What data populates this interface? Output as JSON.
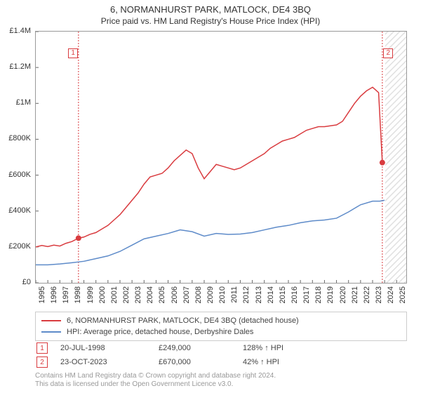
{
  "title": "6, NORMANHURST PARK, MATLOCK, DE4 3BQ",
  "subtitle": "Price paid vs. HM Land Registry's House Price Index (HPI)",
  "chart": {
    "type": "line",
    "background_color": "#ffffff",
    "border_color": "#999999",
    "x": {
      "min": 1995,
      "max": 2025.8,
      "ticks": [
        1995,
        1996,
        1997,
        1998,
        1999,
        2000,
        2001,
        2002,
        2003,
        2004,
        2005,
        2006,
        2007,
        2008,
        2009,
        2010,
        2011,
        2012,
        2013,
        2014,
        2015,
        2016,
        2017,
        2018,
        2019,
        2020,
        2021,
        2022,
        2023,
        2024,
        2025
      ],
      "tick_labels": [
        "1995",
        "1996",
        "1997",
        "1998",
        "1999",
        "2000",
        "2001",
        "2002",
        "2003",
        "2004",
        "2005",
        "2006",
        "2007",
        "2008",
        "2009",
        "2010",
        "2011",
        "2012",
        "2013",
        "2014",
        "2015",
        "2016",
        "2017",
        "2018",
        "2019",
        "2020",
        "2021",
        "2022",
        "2023",
        "2024",
        "2025"
      ],
      "tick_color": "#666666",
      "label_fontsize": 11,
      "label_rotation": -90
    },
    "y": {
      "min": 0,
      "max": 1400000,
      "ticks": [
        0,
        200000,
        400000,
        600000,
        800000,
        1000000,
        1200000,
        1400000
      ],
      "tick_labels": [
        "£0",
        "£200K",
        "£400K",
        "£600K",
        "£800K",
        "£1M",
        "£1.2M",
        "£1.4M"
      ],
      "tick_color": "#666666",
      "label_fontsize": 11
    },
    "series": [
      {
        "name": "price_line",
        "label": "6, NORMANHURST PARK, MATLOCK, DE4 3BQ (detached house)",
        "color": "#d93b3f",
        "line_width": 1.5,
        "data": [
          [
            1995.0,
            200000
          ],
          [
            1995.5,
            208000
          ],
          [
            1996.0,
            202000
          ],
          [
            1996.5,
            210000
          ],
          [
            1997.0,
            205000
          ],
          [
            1997.5,
            220000
          ],
          [
            1998.0,
            230000
          ],
          [
            1998.55,
            249000
          ],
          [
            1999.0,
            255000
          ],
          [
            1999.5,
            270000
          ],
          [
            2000.0,
            280000
          ],
          [
            2000.5,
            300000
          ],
          [
            2001.0,
            320000
          ],
          [
            2001.5,
            350000
          ],
          [
            2002.0,
            380000
          ],
          [
            2002.5,
            420000
          ],
          [
            2003.0,
            460000
          ],
          [
            2003.5,
            500000
          ],
          [
            2004.0,
            550000
          ],
          [
            2004.5,
            590000
          ],
          [
            2005.0,
            600000
          ],
          [
            2005.5,
            610000
          ],
          [
            2006.0,
            640000
          ],
          [
            2006.5,
            680000
          ],
          [
            2007.0,
            710000
          ],
          [
            2007.5,
            740000
          ],
          [
            2008.0,
            720000
          ],
          [
            2008.5,
            640000
          ],
          [
            2009.0,
            580000
          ],
          [
            2009.5,
            620000
          ],
          [
            2010.0,
            660000
          ],
          [
            2010.5,
            650000
          ],
          [
            2011.0,
            640000
          ],
          [
            2011.5,
            630000
          ],
          [
            2012.0,
            640000
          ],
          [
            2012.5,
            660000
          ],
          [
            2013.0,
            680000
          ],
          [
            2013.5,
            700000
          ],
          [
            2014.0,
            720000
          ],
          [
            2014.5,
            750000
          ],
          [
            2015.0,
            770000
          ],
          [
            2015.5,
            790000
          ],
          [
            2016.0,
            800000
          ],
          [
            2016.5,
            810000
          ],
          [
            2017.0,
            830000
          ],
          [
            2017.5,
            850000
          ],
          [
            2018.0,
            860000
          ],
          [
            2018.5,
            870000
          ],
          [
            2019.0,
            870000
          ],
          [
            2019.5,
            875000
          ],
          [
            2020.0,
            880000
          ],
          [
            2020.5,
            900000
          ],
          [
            2021.0,
            950000
          ],
          [
            2021.5,
            1000000
          ],
          [
            2022.0,
            1040000
          ],
          [
            2022.5,
            1070000
          ],
          [
            2023.0,
            1090000
          ],
          [
            2023.5,
            1060000
          ],
          [
            2023.81,
            670000
          ]
        ]
      },
      {
        "name": "hpi_line",
        "label": "HPI: Average price, detached house, Derbyshire Dales",
        "color": "#5e8bc9",
        "line_width": 1.5,
        "data": [
          [
            1995.0,
            100000
          ],
          [
            1996.0,
            100000
          ],
          [
            1997.0,
            105000
          ],
          [
            1998.0,
            112000
          ],
          [
            1999.0,
            120000
          ],
          [
            2000.0,
            135000
          ],
          [
            2001.0,
            150000
          ],
          [
            2002.0,
            175000
          ],
          [
            2003.0,
            210000
          ],
          [
            2004.0,
            245000
          ],
          [
            2005.0,
            260000
          ],
          [
            2006.0,
            275000
          ],
          [
            2007.0,
            295000
          ],
          [
            2008.0,
            285000
          ],
          [
            2009.0,
            260000
          ],
          [
            2010.0,
            275000
          ],
          [
            2011.0,
            270000
          ],
          [
            2012.0,
            272000
          ],
          [
            2013.0,
            280000
          ],
          [
            2014.0,
            295000
          ],
          [
            2015.0,
            310000
          ],
          [
            2016.0,
            320000
          ],
          [
            2017.0,
            335000
          ],
          [
            2018.0,
            345000
          ],
          [
            2019.0,
            350000
          ],
          [
            2020.0,
            360000
          ],
          [
            2021.0,
            395000
          ],
          [
            2022.0,
            435000
          ],
          [
            2023.0,
            455000
          ],
          [
            2023.6,
            455000
          ],
          [
            2024.0,
            460000
          ]
        ]
      }
    ],
    "markers": [
      {
        "n": "1",
        "x": 1998.55,
        "y": 249000,
        "color": "#d93b3f",
        "badge_x": 1998.1,
        "badge_y": 1280000
      },
      {
        "n": "2",
        "x": 2023.81,
        "y": 670000,
        "color": "#d93b3f",
        "badge_x": 2024.3,
        "badge_y": 1280000
      }
    ],
    "marker_line_color": "#d93b3f",
    "marker_line_dash": "2,2",
    "marker_dot_radius": 4,
    "future_hatch": {
      "from": 2024.05,
      "to": 2025.8,
      "color": "#cccccc"
    }
  },
  "legend": {
    "border_color": "#cccccc",
    "items": [
      {
        "color": "#d93b3f",
        "label": "6, NORMANHURST PARK, MATLOCK, DE4 3BQ (detached house)"
      },
      {
        "color": "#5e8bc9",
        "label": "HPI: Average price, detached house, Derbyshire Dales"
      }
    ]
  },
  "marker_rows": [
    {
      "n": "1",
      "color": "#d93b3f",
      "date": "20-JUL-1998",
      "price": "£249,000",
      "pct": "128% ↑ HPI"
    },
    {
      "n": "2",
      "color": "#d93b3f",
      "date": "23-OCT-2023",
      "price": "£670,000",
      "pct": "42% ↑ HPI"
    }
  ],
  "footer_line1": "Contains HM Land Registry data © Crown copyright and database right 2024.",
  "footer_line2": "This data is licensed under the Open Government Licence v3.0."
}
